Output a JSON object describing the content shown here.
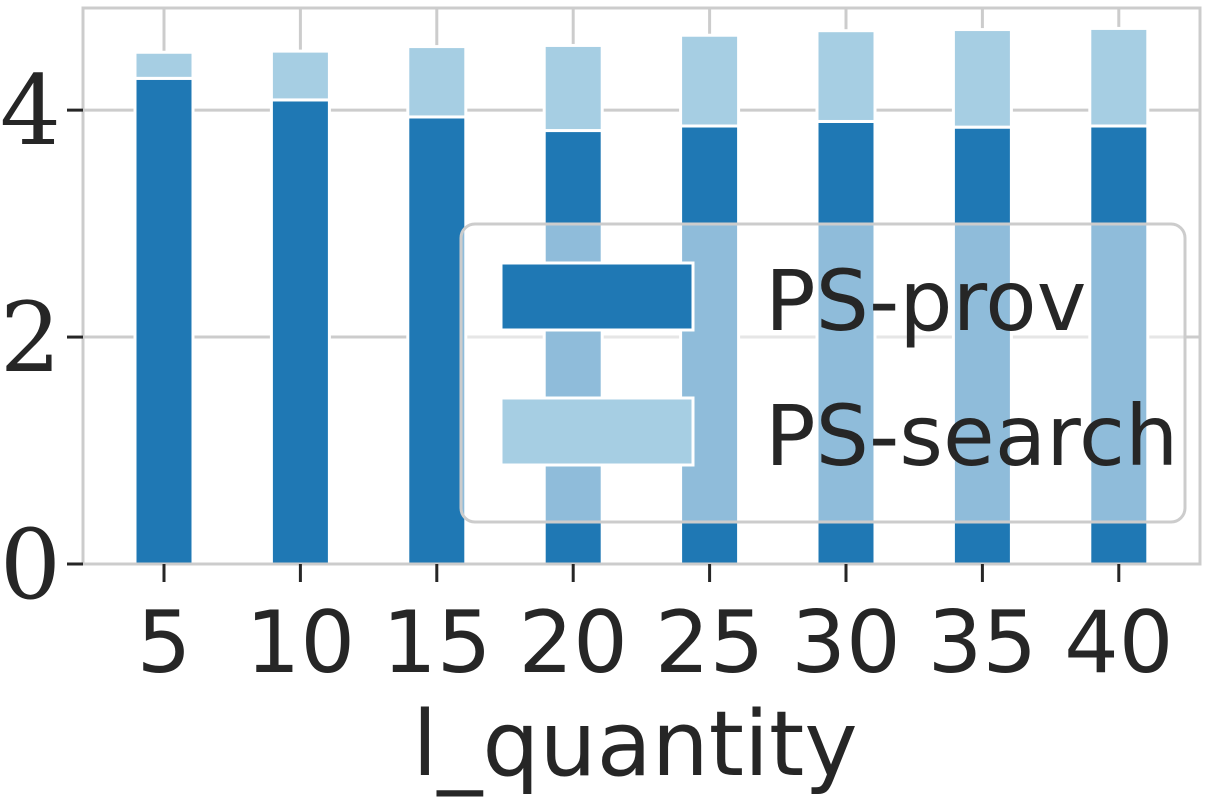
{
  "chart_data": {
    "type": "bar",
    "stacked": true,
    "categories": [
      "5",
      "10",
      "15",
      "20",
      "25",
      "30",
      "35",
      "40"
    ],
    "series": [
      {
        "name": "PS-prov",
        "color": "#1f78b4",
        "values": [
          4.28,
          4.09,
          3.94,
          3.82,
          3.86,
          3.9,
          3.85,
          3.86
        ]
      },
      {
        "name": "PS-search",
        "color": "#a6cee3",
        "values": [
          0.23,
          0.43,
          0.62,
          0.75,
          0.8,
          0.8,
          0.86,
          0.86
        ]
      }
    ],
    "title": "",
    "xlabel": "l_quantity",
    "ylabel": "",
    "ylim": [
      0,
      4.9
    ],
    "yticks": [
      "0",
      "2",
      "4"
    ],
    "grid": true,
    "legend": "center-right"
  }
}
